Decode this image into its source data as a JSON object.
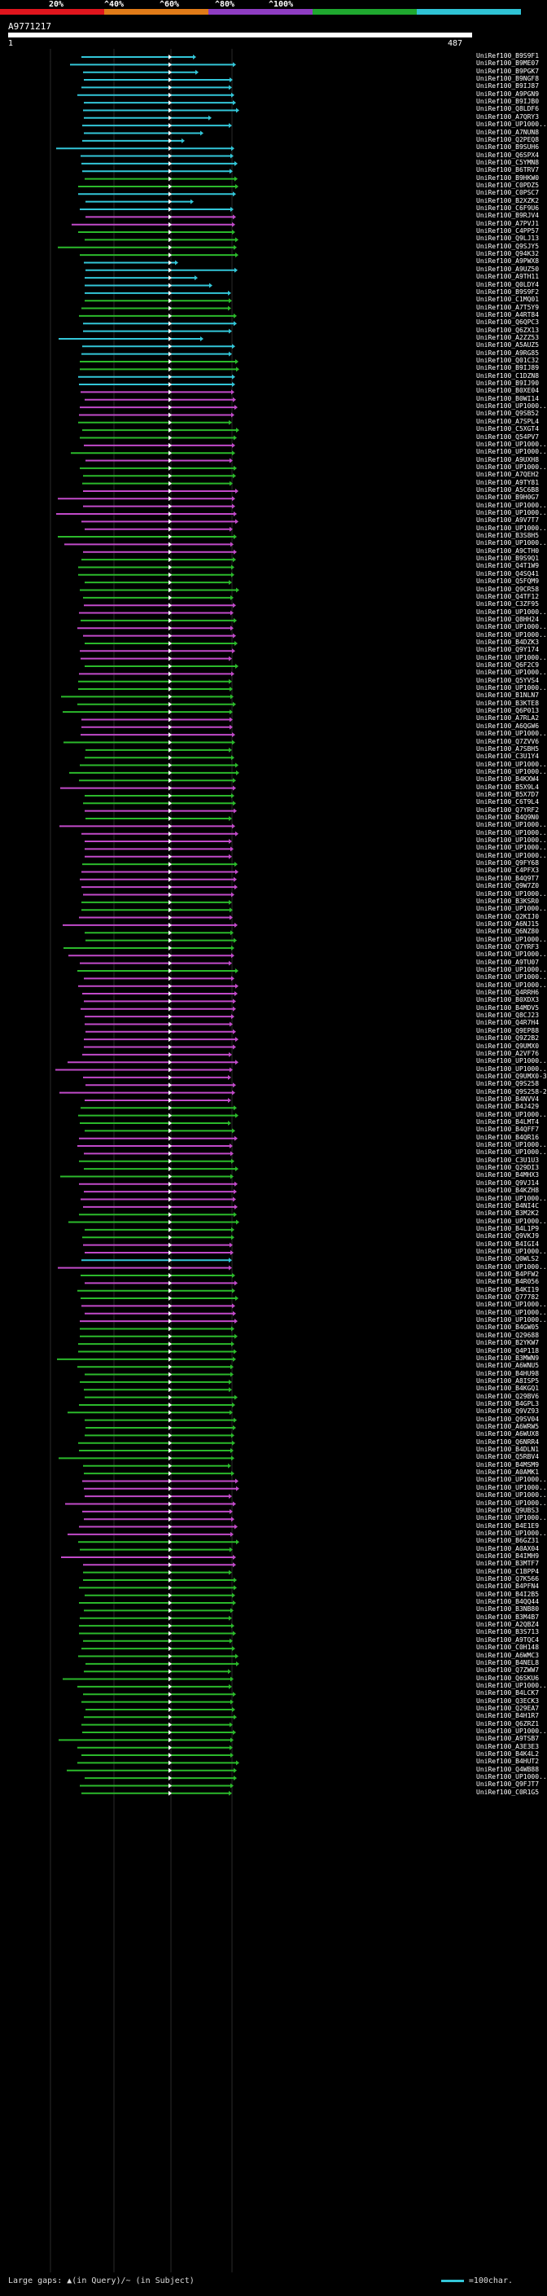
{
  "scale": {
    "labels": [
      "20%",
      "^40%",
      "^60%",
      "^80%",
      "^100%"
    ],
    "colors": [
      "#e0151d",
      "#e07b18",
      "#8e3cc2",
      "#1fa82f",
      "#2fc3d5"
    ]
  },
  "query": {
    "title": "A9771217",
    "start": "1",
    "end": "487"
  },
  "series_colors": {
    "cyan": "#33c6d8",
    "green": "#2bb92b",
    "magenta": "#c14ac9"
  },
  "hits": [
    {
      "label": "UniRef100_B9S9F1",
      "c": "cyan"
    },
    {
      "label": "UniRef100_B9ME07",
      "c": "cyan"
    },
    {
      "label": "UniRef100_B9PGK7",
      "c": "cyan"
    },
    {
      "label": "UniRef100_B9NGF8",
      "c": "cyan"
    },
    {
      "label": "UniRef100_B9IJ87",
      "c": "cyan"
    },
    {
      "label": "UniRef100_A9PGN9",
      "c": "cyan"
    },
    {
      "label": "UniRef100_B9IJB0",
      "c": "cyan"
    },
    {
      "label": "UniRef100_Q8LDF6",
      "c": "cyan"
    },
    {
      "label": "UniRef100_A7QRY3",
      "c": "cyan"
    },
    {
      "label": "UniRef100_UP1000..",
      "c": "cyan"
    },
    {
      "label": "UniRef100_A7NUN8",
      "c": "cyan"
    },
    {
      "label": "UniRef100_Q2PEQ8",
      "c": "cyan"
    },
    {
      "label": "UniRef100_B9SUH6",
      "c": "cyan"
    },
    {
      "label": "UniRef100_Q6SPX4",
      "c": "cyan"
    },
    {
      "label": "UniRef100_C5YMN8",
      "c": "cyan"
    },
    {
      "label": "UniRef100_B6TRV7",
      "c": "cyan"
    },
    {
      "label": "UniRef100_B9HKW0",
      "c": "green"
    },
    {
      "label": "UniRef100_C0PDZ5",
      "c": "green"
    },
    {
      "label": "UniRef100_C0PSC7",
      "c": "cyan"
    },
    {
      "label": "UniRef100_B2XZK2",
      "c": "cyan"
    },
    {
      "label": "UniRef100_C6F9U6",
      "c": "cyan"
    },
    {
      "label": "UniRef100_B9RJV4",
      "c": "magenta"
    },
    {
      "label": "UniRef100_A7PVJ1",
      "c": "magenta"
    },
    {
      "label": "UniRef100_C4PP57",
      "c": "green"
    },
    {
      "label": "UniRef100_Q9LJ13",
      "c": "green"
    },
    {
      "label": "UniRef100_Q9SJY5",
      "c": "green"
    },
    {
      "label": "UniRef100_Q94K32",
      "c": "green"
    },
    {
      "label": "UniRef100_A9PWX8",
      "c": "cyan"
    },
    {
      "label": "UniRef100_A9UZ50",
      "c": "cyan"
    },
    {
      "label": "UniRef100_A9TH11",
      "c": "cyan"
    },
    {
      "label": "UniRef100_Q0LDY4",
      "c": "cyan"
    },
    {
      "label": "UniRef100_B9S9F2",
      "c": "cyan"
    },
    {
      "label": "UniRef100_C1MQ01",
      "c": "green"
    },
    {
      "label": "UniRef100_A7T5Y9",
      "c": "green"
    },
    {
      "label": "UniRef100_A4RT84",
      "c": "green"
    },
    {
      "label": "UniRef100_Q6QPC3",
      "c": "cyan"
    },
    {
      "label": "UniRef100_Q6ZX13",
      "c": "cyan"
    },
    {
      "label": "UniRef100_A2ZZ53",
      "c": "cyan"
    },
    {
      "label": "UniRef100_A5AUZ5",
      "c": "cyan"
    },
    {
      "label": "UniRef100_A9RG85",
      "c": "cyan"
    },
    {
      "label": "UniRef100_Q01C32",
      "c": "green"
    },
    {
      "label": "UniRef100_B9IJ89",
      "c": "green"
    },
    {
      "label": "UniRef100_C1DZN8",
      "c": "cyan"
    },
    {
      "label": "UniRef100_B9IJ90",
      "c": "cyan"
    },
    {
      "label": "UniRef100_B0XE04",
      "c": "magenta"
    },
    {
      "label": "UniRef100_B0WI14",
      "c": "magenta"
    },
    {
      "label": "UniRef100_UP1000..",
      "c": "magenta"
    },
    {
      "label": "UniRef100_Q9SB52",
      "c": "magenta"
    },
    {
      "label": "UniRef100_A7SPL4",
      "c": "green"
    },
    {
      "label": "UniRef100_C5XGT4",
      "c": "green"
    },
    {
      "label": "UniRef100_Q54PV7",
      "c": "green"
    },
    {
      "label": "UniRef100_UP1000..",
      "c": "magenta"
    },
    {
      "label": "UniRef100_UP1000..",
      "c": "green"
    },
    {
      "label": "UniRef100_A9UXH8",
      "c": "magenta"
    },
    {
      "label": "UniRef100_UP1000..",
      "c": "green"
    },
    {
      "label": "UniRef100_A7QEH2",
      "c": "green"
    },
    {
      "label": "UniRef100_A9TY81",
      "c": "green"
    },
    {
      "label": "UniRef100_A5C6B8",
      "c": "magenta"
    },
    {
      "label": "UniRef100_B9H0G7",
      "c": "magenta"
    },
    {
      "label": "UniRef100_UP1000..",
      "c": "magenta"
    },
    {
      "label": "UniRef100_UP1000..",
      "c": "magenta"
    },
    {
      "label": "UniRef100_A9V7T7",
      "c": "magenta"
    },
    {
      "label": "UniRef100_UP1000..",
      "c": "magenta"
    },
    {
      "label": "UniRef100_B3S8H5",
      "c": "green"
    },
    {
      "label": "UniRef100_UP1000..",
      "c": "magenta"
    },
    {
      "label": "UniRef100_A9CTH0",
      "c": "magenta"
    },
    {
      "label": "UniRef100_B9S9Q1",
      "c": "green"
    },
    {
      "label": "UniRef100_Q4T1W9",
      "c": "green"
    },
    {
      "label": "UniRef100_Q4SQ41",
      "c": "green"
    },
    {
      "label": "UniRef100_Q5FQM9",
      "c": "green"
    },
    {
      "label": "UniRef100_Q9CR58",
      "c": "green"
    },
    {
      "label": "UniRef100_Q4TF12",
      "c": "green"
    },
    {
      "label": "UniRef100_C3ZF95",
      "c": "magenta"
    },
    {
      "label": "UniRef100_UP1000..",
      "c": "magenta"
    },
    {
      "label": "UniRef100_Q8HH24",
      "c": "green"
    },
    {
      "label": "UniRef100_UP1000..",
      "c": "magenta"
    },
    {
      "label": "UniRef100_UP1000..",
      "c": "magenta"
    },
    {
      "label": "UniRef100_B4DZK3",
      "c": "green"
    },
    {
      "label": "UniRef100_Q9Y174",
      "c": "magenta"
    },
    {
      "label": "UniRef100_UP1000..",
      "c": "magenta"
    },
    {
      "label": "UniRef100_Q6F2C9",
      "c": "green"
    },
    {
      "label": "UniRef100_UP1000..",
      "c": "magenta"
    },
    {
      "label": "UniRef100_Q5YVS4",
      "c": "green"
    },
    {
      "label": "UniRef100_UP1000..",
      "c": "green"
    },
    {
      "label": "UniRef100_B1NLN7",
      "c": "green"
    },
    {
      "label": "UniRef100_B3KTE8",
      "c": "green"
    },
    {
      "label": "UniRef100_Q6P013",
      "c": "green"
    },
    {
      "label": "UniRef100_A7RLA2",
      "c": "magenta"
    },
    {
      "label": "UniRef100_A6QGW6",
      "c": "magenta"
    },
    {
      "label": "UniRef100_UP1000..",
      "c": "magenta"
    },
    {
      "label": "UniRef100_Q7ZVV6",
      "c": "green"
    },
    {
      "label": "UniRef100_A7SBH5",
      "c": "green"
    },
    {
      "label": "UniRef100_C3U1Y4",
      "c": "green"
    },
    {
      "label": "UniRef100_UP1000..",
      "c": "green"
    },
    {
      "label": "UniRef100_UP1000..",
      "c": "green"
    },
    {
      "label": "UniRef100_B4KXW4",
      "c": "green"
    },
    {
      "label": "UniRef100_B5X9L4",
      "c": "magenta"
    },
    {
      "label": "UniRef100_B5X7D7",
      "c": "green"
    },
    {
      "label": "UniRef100_C6T9L4",
      "c": "green"
    },
    {
      "label": "UniRef100_Q7YRF2",
      "c": "magenta"
    },
    {
      "label": "UniRef100_B4Q9N0",
      "c": "green"
    },
    {
      "label": "UniRef100_UP1000..",
      "c": "magenta"
    },
    {
      "label": "UniRef100_UP1000..",
      "c": "magenta"
    },
    {
      "label": "UniRef100_UP1000..",
      "c": "magenta"
    },
    {
      "label": "UniRef100_UP1000..",
      "c": "magenta"
    },
    {
      "label": "UniRef100_UP1000..",
      "c": "magenta"
    },
    {
      "label": "UniRef100_Q9FY68",
      "c": "green"
    },
    {
      "label": "UniRef100_C4PFX3",
      "c": "magenta"
    },
    {
      "label": "UniRef100_B4Q9T7",
      "c": "magenta"
    },
    {
      "label": "UniRef100_Q9W7Z0",
      "c": "magenta"
    },
    {
      "label": "UniRef100_UP1000..",
      "c": "magenta"
    },
    {
      "label": "UniRef100_B3KSR0",
      "c": "green"
    },
    {
      "label": "UniRef100_UP1000..",
      "c": "green"
    },
    {
      "label": "UniRef100_Q2KIJ0",
      "c": "magenta"
    },
    {
      "label": "UniRef100_A6NJ15",
      "c": "magenta"
    },
    {
      "label": "UniRef100_Q6NZ80",
      "c": "green"
    },
    {
      "label": "UniRef100_UP1000..",
      "c": "green"
    },
    {
      "label": "UniRef100_Q7YRF3",
      "c": "green"
    },
    {
      "label": "UniRef100_UP1000..",
      "c": "magenta"
    },
    {
      "label": "UniRef100_A9TU07",
      "c": "magenta"
    },
    {
      "label": "UniRef100_UP1000..",
      "c": "green"
    },
    {
      "label": "UniRef100_UP1000..",
      "c": "magenta"
    },
    {
      "label": "UniRef100_UP1000..",
      "c": "magenta"
    },
    {
      "label": "UniRef100_Q4RRH6",
      "c": "magenta"
    },
    {
      "label": "UniRef100_B0XDX3",
      "c": "magenta"
    },
    {
      "label": "UniRef100_B4MDV5",
      "c": "magenta"
    },
    {
      "label": "UniRef100_Q8CJ23",
      "c": "magenta"
    },
    {
      "label": "UniRef100_Q4R7H4",
      "c": "magenta"
    },
    {
      "label": "UniRef100_Q9EP88",
      "c": "magenta"
    },
    {
      "label": "UniRef100_Q9Z2B2",
      "c": "magenta"
    },
    {
      "label": "UniRef100_Q9UMX0",
      "c": "magenta"
    },
    {
      "label": "UniRef100_A2VF76",
      "c": "magenta"
    },
    {
      "label": "UniRef100_UP1000..",
      "c": "magenta"
    },
    {
      "label": "UniRef100_UP1000..",
      "c": "magenta"
    },
    {
      "label": "UniRef100_Q9UMX0-3",
      "c": "magenta"
    },
    {
      "label": "UniRef100_Q9S258",
      "c": "magenta"
    },
    {
      "label": "UniRef100_Q9S258-2",
      "c": "magenta"
    },
    {
      "label": "UniRef100_B4NVV4",
      "c": "magenta"
    },
    {
      "label": "UniRef100_B4J429",
      "c": "green"
    },
    {
      "label": "UniRef100_UP1000..",
      "c": "green"
    },
    {
      "label": "UniRef100_B4LMT4",
      "c": "green"
    },
    {
      "label": "UniRef100_B4QFF7",
      "c": "green"
    },
    {
      "label": "UniRef100_B4QR16",
      "c": "magenta"
    },
    {
      "label": "UniRef100_UP1000..",
      "c": "magenta"
    },
    {
      "label": "UniRef100_UP1000..",
      "c": "magenta"
    },
    {
      "label": "UniRef100_C3U1U3",
      "c": "green"
    },
    {
      "label": "UniRef100_Q29DI3",
      "c": "green"
    },
    {
      "label": "UniRef100_B4MHX3",
      "c": "green"
    },
    {
      "label": "UniRef100_Q9VJ14",
      "c": "magenta"
    },
    {
      "label": "UniRef100_B4KZH8",
      "c": "magenta"
    },
    {
      "label": "UniRef100_UP1000..",
      "c": "magenta"
    },
    {
      "label": "UniRef100_B4NI4C",
      "c": "magenta"
    },
    {
      "label": "UniRef100_B3M2K2",
      "c": "green"
    },
    {
      "label": "UniRef100_UP1000..",
      "c": "green"
    },
    {
      "label": "UniRef100_B4L1P9",
      "c": "green"
    },
    {
      "label": "UniRef100_Q9VKJ9",
      "c": "green"
    },
    {
      "label": "UniRef100_B4IGI4",
      "c": "magenta"
    },
    {
      "label": "UniRef100_UP1000..",
      "c": "magenta"
    },
    {
      "label": "UniRef100_Q0WLS2",
      "c": "cyan"
    },
    {
      "label": "UniRef100_UP1000..",
      "c": "magenta"
    },
    {
      "label": "UniRef100_B4PFW2",
      "c": "green"
    },
    {
      "label": "UniRef100_B4R056",
      "c": "magenta"
    },
    {
      "label": "UniRef100_B4KI19",
      "c": "green"
    },
    {
      "label": "UniRef100_Q77782",
      "c": "green"
    },
    {
      "label": "UniRef100_UP1000..",
      "c": "magenta"
    },
    {
      "label": "UniRef100_UP1000..",
      "c": "magenta"
    },
    {
      "label": "UniRef100_UP1000..",
      "c": "magenta"
    },
    {
      "label": "UniRef100_B4GW05",
      "c": "green"
    },
    {
      "label": "UniRef100_Q29688",
      "c": "green"
    },
    {
      "label": "UniRef100_B2YKW7",
      "c": "green"
    },
    {
      "label": "UniRef100_Q4P118",
      "c": "green"
    },
    {
      "label": "UniRef100_B3MWN9",
      "c": "green"
    },
    {
      "label": "UniRef100_A6WNU5",
      "c": "green"
    },
    {
      "label": "UniRef100_B4HU98",
      "c": "green"
    },
    {
      "label": "UniRef100_A8ISP5",
      "c": "green"
    },
    {
      "label": "UniRef100_B4KGQ1",
      "c": "green"
    },
    {
      "label": "UniRef100_Q29BV6",
      "c": "green"
    },
    {
      "label": "UniRef100_B4GPL3",
      "c": "green"
    },
    {
      "label": "UniRef100_Q9VZ93",
      "c": "green"
    },
    {
      "label": "UniRef100_Q9SV04",
      "c": "green"
    },
    {
      "label": "UniRef100_A6WRW5",
      "c": "green"
    },
    {
      "label": "UniRef100_A6WUX8",
      "c": "green"
    },
    {
      "label": "UniRef100_Q6NRR4",
      "c": "green"
    },
    {
      "label": "UniRef100_B4DLN1",
      "c": "green"
    },
    {
      "label": "UniRef100_Q5RBV4",
      "c": "green"
    },
    {
      "label": "UniRef100_B4MSM9",
      "c": "green"
    },
    {
      "label": "UniRef100_A0AMK1",
      "c": "green"
    },
    {
      "label": "UniRef100_UP1000..",
      "c": "magenta"
    },
    {
      "label": "UniRef100_UP1000..",
      "c": "magenta"
    },
    {
      "label": "UniRef100_UP1000..",
      "c": "magenta"
    },
    {
      "label": "UniRef100_UP1000..",
      "c": "magenta"
    },
    {
      "label": "UniRef100_Q9UBS3",
      "c": "magenta"
    },
    {
      "label": "UniRef100_UP1000..",
      "c": "magenta"
    },
    {
      "label": "UniRef100_B4E1E9",
      "c": "magenta"
    },
    {
      "label": "UniRef100_UP1000..",
      "c": "magenta"
    },
    {
      "label": "UniRef100_B6GZ31",
      "c": "green"
    },
    {
      "label": "UniRef100_A0AX04",
      "c": "green"
    },
    {
      "label": "UniRef100_B4IMH9",
      "c": "magenta"
    },
    {
      "label": "UniRef100_B3MTF7",
      "c": "magenta"
    },
    {
      "label": "UniRef100_C1BPP4",
      "c": "green"
    },
    {
      "label": "UniRef100_Q7K566",
      "c": "green"
    },
    {
      "label": "UniRef100_B4PFN4",
      "c": "green"
    },
    {
      "label": "UniRef100_B4I2B5",
      "c": "green"
    },
    {
      "label": "UniRef100_B4QQ44",
      "c": "green"
    },
    {
      "label": "UniRef100_B3NB80",
      "c": "green"
    },
    {
      "label": "UniRef100_B3M4B7",
      "c": "green"
    },
    {
      "label": "UniRef100_A2QBZ4",
      "c": "green"
    },
    {
      "label": "UniRef100_B3S713",
      "c": "green"
    },
    {
      "label": "UniRef100_A9TQC4",
      "c": "green"
    },
    {
      "label": "UniRef100_C0H148",
      "c": "green"
    },
    {
      "label": "UniRef100_A6WMC3",
      "c": "green"
    },
    {
      "label": "UniRef100_B4NEL8",
      "c": "green"
    },
    {
      "label": "UniRef100_Q7ZWW7",
      "c": "green"
    },
    {
      "label": "UniRef100_Q6SKU6",
      "c": "green"
    },
    {
      "label": "UniRef100_UP1000..",
      "c": "green"
    },
    {
      "label": "UniRef100_B4LCK7",
      "c": "green"
    },
    {
      "label": "UniRef100_Q3ECK3",
      "c": "green"
    },
    {
      "label": "UniRef100_Q29EA7",
      "c": "green"
    },
    {
      "label": "UniRef100_B4H1R7",
      "c": "green"
    },
    {
      "label": "UniRef100_Q6ZRZ1",
      "c": "green"
    },
    {
      "label": "UniRef100_UP1000..",
      "c": "green"
    },
    {
      "label": "UniRef100_A9TSB7",
      "c": "green"
    },
    {
      "label": "UniRef100_A3E3E3",
      "c": "green"
    },
    {
      "label": "UniRef100_B4K4L2",
      "c": "green"
    },
    {
      "label": "UniRef100_B4HUT2",
      "c": "green"
    },
    {
      "label": "UniRef100_Q4WB88",
      "c": "green"
    },
    {
      "label": "UniRef100_UP1000..",
      "c": "green"
    },
    {
      "label": "UniRef100_Q9FJT7",
      "c": "green"
    },
    {
      "label": "UniRef100_C0R1G5",
      "c": "green"
    }
  ],
  "footer": {
    "large_gaps_label": "Large gaps:",
    "in_query_label": "▲(in Query)/~ (in Subject)",
    "scale_label": "=100char."
  }
}
